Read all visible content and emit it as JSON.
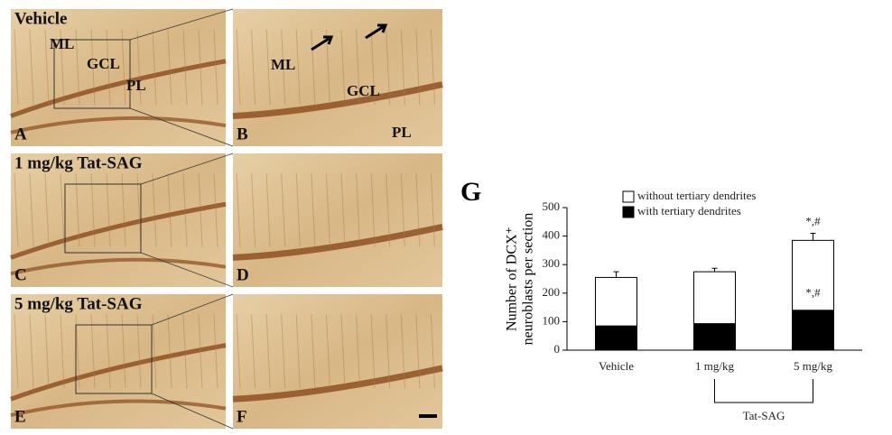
{
  "panels": [
    {
      "letter": "A",
      "title": "Vehicle",
      "layers": [
        "ML",
        "GCL",
        "PL"
      ]
    },
    {
      "letter": "B",
      "layers": [
        "ML",
        "GCL",
        "PL"
      ]
    },
    {
      "letter": "C",
      "title": "1 mg/kg Tat-SAG"
    },
    {
      "letter": "D"
    },
    {
      "letter": "E",
      "title": "5 mg/kg Tat-SAG"
    },
    {
      "letter": "F"
    }
  ],
  "chart_data": {
    "type": "stacked-bar",
    "panel_letter": "G",
    "y_label": [
      "Number of DCX⁺",
      "neuroblasts per section"
    ],
    "categories": [
      "Vehicle",
      "1 mg/kg",
      "5 mg/kg"
    ],
    "series": [
      {
        "name": "with tertiary dendrites",
        "color": "#000000",
        "values": [
          85,
          93,
          140
        ],
        "errors": [
          10,
          8,
          20
        ]
      },
      {
        "name": "without tertiary dendrites",
        "color": "#ffffff",
        "values": [
          170,
          182,
          245
        ],
        "errors": [
          20,
          12,
          25
        ]
      }
    ],
    "ylim": [
      0,
      500
    ],
    "yticks": [
      0,
      100,
      200,
      300,
      400,
      500
    ],
    "annotations": [
      "*,#",
      "*,#"
    ],
    "group_label": "Tat-SAG"
  }
}
